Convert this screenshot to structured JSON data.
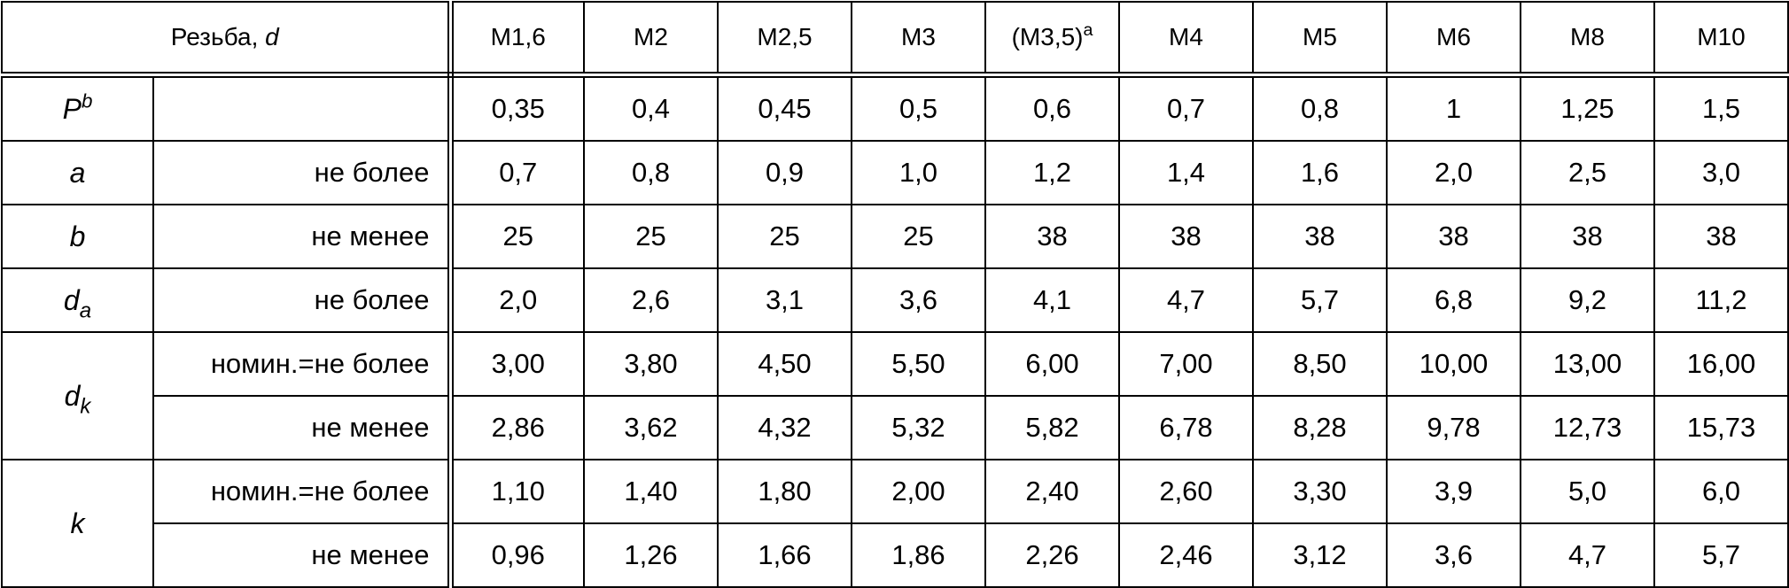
{
  "header": {
    "thread_label": "Резьба, ",
    "thread_var": "d",
    "sizes": [
      {
        "text": "M1,6"
      },
      {
        "text": "M2"
      },
      {
        "text": "M2,5"
      },
      {
        "text": "M3"
      },
      {
        "text": "(M3,5)",
        "sup": "a"
      },
      {
        "text": "M4"
      },
      {
        "text": "M5"
      },
      {
        "text": "M6"
      },
      {
        "text": "M8"
      },
      {
        "text": "M10"
      }
    ]
  },
  "rows": [
    {
      "symbol": "P",
      "sup": "b",
      "lines": [
        {
          "values": [
            "0,35",
            "0,4",
            "0,45",
            "0,5",
            "0,6",
            "0,7",
            "0,8",
            "1",
            "1,25",
            "1,5"
          ]
        }
      ]
    },
    {
      "symbol": "a",
      "lines": [
        {
          "condition": "не более",
          "values": [
            "0,7",
            "0,8",
            "0,9",
            "1,0",
            "1,2",
            "1,4",
            "1,6",
            "2,0",
            "2,5",
            "3,0"
          ]
        }
      ]
    },
    {
      "symbol": "b",
      "lines": [
        {
          "condition": "не менее",
          "values": [
            "25",
            "25",
            "25",
            "25",
            "38",
            "38",
            "38",
            "38",
            "38",
            "38"
          ]
        }
      ]
    },
    {
      "symbol": "d",
      "sub": "a",
      "lines": [
        {
          "condition": "не более",
          "values": [
            "2,0",
            "2,6",
            "3,1",
            "3,6",
            "4,1",
            "4,7",
            "5,7",
            "6,8",
            "9,2",
            "11,2"
          ]
        }
      ]
    },
    {
      "symbol": "d",
      "sub": "k",
      "lines": [
        {
          "condition": "номин.=не более",
          "values": [
            "3,00",
            "3,80",
            "4,50",
            "5,50",
            "6,00",
            "7,00",
            "8,50",
            "10,00",
            "13,00",
            "16,00"
          ]
        },
        {
          "condition": "не менее",
          "values": [
            "2,86",
            "3,62",
            "4,32",
            "5,32",
            "5,82",
            "6,78",
            "8,28",
            "9,78",
            "12,73",
            "15,73"
          ]
        }
      ]
    },
    {
      "symbol": "k",
      "lines": [
        {
          "condition": "номин.=не более",
          "values": [
            "1,10",
            "1,40",
            "1,80",
            "2,00",
            "2,40",
            "2,60",
            "3,30",
            "3,9",
            "5,0",
            "6,0"
          ]
        },
        {
          "condition": "не менее",
          "values": [
            "0,96",
            "1,26",
            "1,66",
            "1,86",
            "2,26",
            "2,46",
            "3,12",
            "3,6",
            "4,7",
            "5,7"
          ]
        }
      ]
    }
  ]
}
